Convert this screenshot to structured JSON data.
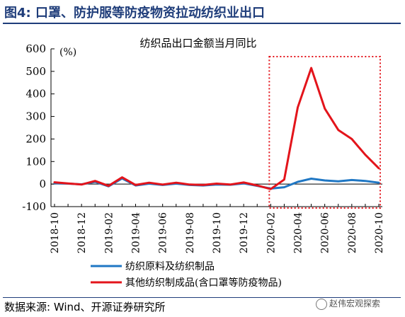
{
  "figure_title": "图4:  口罩、防护服等防疫物资拉动纺织业出口",
  "source_text": "数据来源: Wind、开源证券研究所",
  "watermark_text": "赵伟宏观探索",
  "colors": {
    "title": "#1f3d7a",
    "series_blue": "#1f77c4",
    "series_red": "#e3141b",
    "highlight_box": "#e3141b"
  },
  "chart_data": {
    "type": "line",
    "title": "纺织品出口金额当月同比",
    "unit_label": "(%)",
    "ylim": [
      -100,
      600
    ],
    "yticks": [
      -100,
      0,
      100,
      200,
      300,
      400,
      500,
      600
    ],
    "x": [
      "2018-10",
      "2018-11",
      "2018-12",
      "2019-01",
      "2019-02",
      "2019-03",
      "2019-04",
      "2019-05",
      "2019-06",
      "2019-07",
      "2019-08",
      "2019-09",
      "2019-10",
      "2019-11",
      "2019-12",
      "2020-01",
      "2020-02",
      "2020-03",
      "2020-04",
      "2020-05",
      "2020-06",
      "2020-07",
      "2020-08",
      "2020-09",
      "2020-10"
    ],
    "xtick_labels": [
      "2018-10",
      "2018-12",
      "2019-02",
      "2019-04",
      "2019-06",
      "2019-08",
      "2019-10",
      "2019-12",
      "2020-02",
      "2020-04",
      "2020-06",
      "2020-08",
      "2020-10"
    ],
    "series": [
      {
        "name": "纺织原料及纺织制品",
        "color": "#1f77c4",
        "values": [
          4,
          2,
          -1,
          10,
          -10,
          25,
          -6,
          2,
          -4,
          2,
          -4,
          -6,
          -2,
          -3,
          3,
          -8,
          -20,
          -14,
          10,
          24,
          16,
          12,
          18,
          14,
          6
        ]
      },
      {
        "name": "其他纺织制成品(含口罩等防疫物品)",
        "color": "#e3141b",
        "values": [
          8,
          3,
          -2,
          14,
          -8,
          30,
          -4,
          6,
          -2,
          6,
          -2,
          -4,
          2,
          -2,
          7,
          -6,
          -22,
          20,
          340,
          515,
          335,
          240,
          200,
          130,
          70
        ]
      }
    ],
    "highlight_range": [
      "2020-02",
      "2020-10"
    ],
    "legend_position": "bottom",
    "grid": false
  }
}
